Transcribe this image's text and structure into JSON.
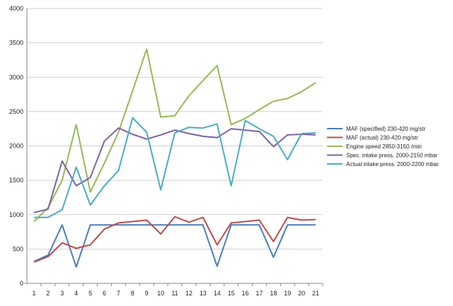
{
  "chart_data": {
    "type": "line",
    "categories": [
      "1",
      "2",
      "3",
      "4",
      "5",
      "6",
      "7",
      "8",
      "9",
      "10",
      "11",
      "12",
      "13",
      "14",
      "15",
      "16",
      "17",
      "18",
      "19",
      "20",
      "21"
    ],
    "ylim": [
      0,
      4000
    ],
    "yticks": [
      0,
      500,
      1000,
      1500,
      2000,
      2500,
      3000,
      3500,
      4000
    ],
    "grid": true,
    "legend_position": "right",
    "series": [
      {
        "name": "MAF (specified) 230-420  mg/str",
        "color": "#4a7ebb",
        "values": [
          320,
          410,
          850,
          240,
          850,
          850,
          850,
          850,
          850,
          850,
          850,
          850,
          850,
          250,
          850,
          850,
          850,
          380,
          850,
          850,
          850
        ]
      },
      {
        "name": "MAF (actual) 230-420  mg/str",
        "color": "#be4b48",
        "values": [
          310,
          390,
          590,
          510,
          560,
          790,
          880,
          900,
          920,
          720,
          970,
          890,
          960,
          560,
          880,
          900,
          920,
          610,
          960,
          920,
          930
        ]
      },
      {
        "name": "Engine speed 2850-3150  /min",
        "color": "#98b954",
        "values": [
          900,
          1100,
          1500,
          2310,
          1330,
          1750,
          2200,
          2800,
          3410,
          2420,
          2440,
          2730,
          2950,
          3170,
          2310,
          2400,
          2530,
          2650,
          2690,
          2790,
          2920
        ]
      },
      {
        "name": "Spec. intake press. 2000-2150  mbar",
        "color": "#7d60a0",
        "values": [
          1030,
          1080,
          1780,
          1420,
          1540,
          2070,
          2260,
          2170,
          2100,
          2160,
          2230,
          2180,
          2140,
          2120,
          2250,
          2230,
          2210,
          1990,
          2160,
          2170,
          2160
        ]
      },
      {
        "name": "Actual intake press. 2000-2200  mbar",
        "color": "#4bacc6",
        "values": [
          960,
          960,
          1070,
          1690,
          1140,
          1420,
          1640,
          2410,
          2200,
          1360,
          2190,
          2270,
          2260,
          2320,
          1420,
          2370,
          2250,
          2140,
          1800,
          2180,
          2190
        ]
      }
    ]
  }
}
